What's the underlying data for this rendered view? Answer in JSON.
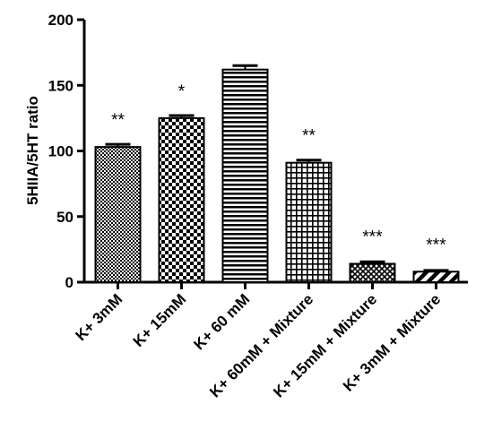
{
  "chart_data": {
    "type": "bar",
    "ylabel": "5HIIA/5HT ratio",
    "xlabel": "",
    "ylim": [
      0,
      200
    ],
    "yticks": [
      "0",
      "50",
      "100",
      "150",
      "200"
    ],
    "categories": [
      "K+ 3mM",
      "K+ 15mM",
      "K+ 60 mM",
      "K+ 60mM + Mixture",
      "K+ 15mM + Mixture",
      "K+ 3mM + Mixture"
    ],
    "values": [
      103,
      125,
      162,
      91,
      14,
      8
    ],
    "errors": [
      2,
      2,
      3,
      2,
      1.5,
      1
    ],
    "significance": [
      "**",
      "*",
      "",
      "**",
      "***",
      "***"
    ],
    "patterns": [
      "checker-fine",
      "checker-coarse",
      "horizontal-lines",
      "grid",
      "crosshatch",
      "diagonal-stripes"
    ],
    "colors": {
      "bar_fill": "#000000",
      "bar_background": "#ffffff",
      "axis": "#000000"
    }
  }
}
